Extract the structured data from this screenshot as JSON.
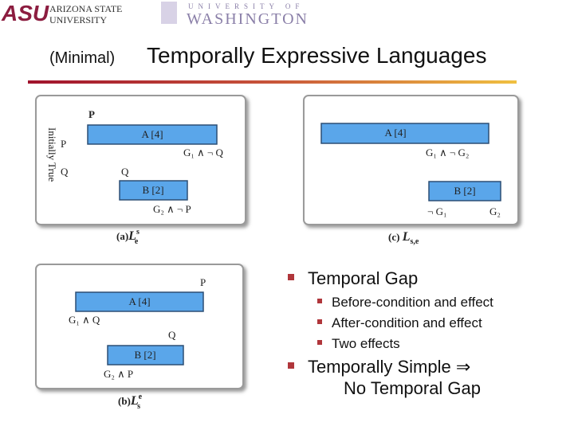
{
  "header": {
    "asu_mark": "ASU",
    "asu_name_1": "ARIZONA STATE",
    "asu_name_2": "UNIVERSITY",
    "uw_name_1": "UNIVERSITY OF",
    "uw_name_2": "WASHINGTON"
  },
  "title": {
    "prefix": "(Minimal)",
    "main": "Temporally Expressive Languages"
  },
  "diagram_a": {
    "top_label": "P",
    "side_label": "Initially True",
    "initial_1": "P",
    "initial_2": "Q",
    "action_a": "A [4]",
    "effect_a": "G₁ ∧ ¬ Q",
    "pre_b": "Q",
    "action_b": "B [2]",
    "effect_b": "G₂ ∧ ¬ P",
    "caption": {
      "label": "(a)",
      "symbol": "L",
      "sup": "s",
      "sub": "e"
    }
  },
  "diagram_c": {
    "action_a": "A [4]",
    "effect_a": "G₁ ∧ ¬ G₂",
    "action_b": "B [2]",
    "effect_b_1": "¬ G₁",
    "effect_b_2": "G₂",
    "caption": {
      "label": "(c) ",
      "symbol": "L",
      "sub": "s,e"
    }
  },
  "diagram_b": {
    "top_label": "P",
    "action_a": "A [4]",
    "effect_a": "G₁ ∧ Q",
    "pre_b": "Q",
    "action_b": "B [2]",
    "effect_b": "G₂ ∧ P",
    "caption": {
      "label": "(b)",
      "symbol": "L",
      "sup": "e",
      "sub": "s"
    }
  },
  "bullets": [
    {
      "text": "Temporal Gap",
      "items": [
        "Before-condition and effect",
        "After-condition and effect",
        "Two effects"
      ]
    },
    {
      "text": "Temporally Simple ⇒",
      "continuation": "No Temporal Gap"
    }
  ]
}
